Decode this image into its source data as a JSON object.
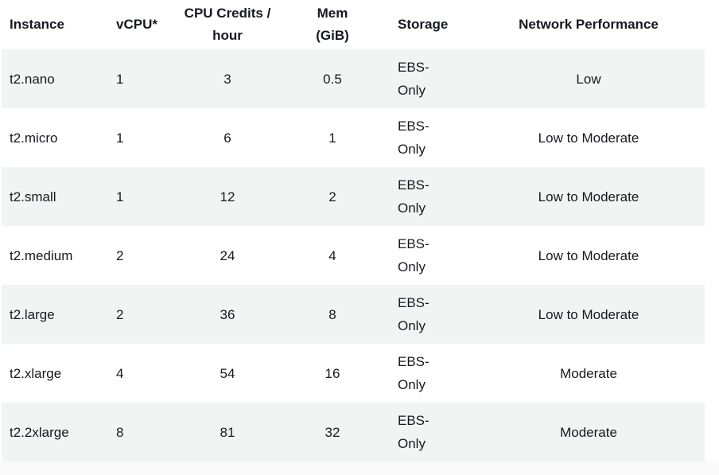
{
  "table": {
    "headers": {
      "instance": "Instance",
      "vcpu": "vCPU*",
      "cpu_credits_line1": "CPU Credits /",
      "cpu_credits_line2": "hour",
      "mem_line1": "Mem",
      "mem_line2": "(GiB)",
      "storage": "Storage",
      "network": "Network Performance"
    },
    "rows": [
      {
        "instance": "t2.nano",
        "vcpu": "1",
        "credits": "3",
        "mem": "0.5",
        "storage_line1": "EBS-",
        "storage_line2": "Only",
        "network": "Low"
      },
      {
        "instance": "t2.micro",
        "vcpu": "1",
        "credits": "6",
        "mem": "1",
        "storage_line1": "EBS-",
        "storage_line2": "Only",
        "network": "Low to Moderate"
      },
      {
        "instance": "t2.small",
        "vcpu": "1",
        "credits": "12",
        "mem": "2",
        "storage_line1": "EBS-",
        "storage_line2": "Only",
        "network": "Low to Moderate"
      },
      {
        "instance": "t2.medium",
        "vcpu": "2",
        "credits": "24",
        "mem": "4",
        "storage_line1": "EBS-",
        "storage_line2": "Only",
        "network": "Low to Moderate"
      },
      {
        "instance": "t2.large",
        "vcpu": "2",
        "credits": "36",
        "mem": "8",
        "storage_line1": "EBS-",
        "storage_line2": "Only",
        "network": "Low to Moderate"
      },
      {
        "instance": "t2.xlarge",
        "vcpu": "4",
        "credits": "54",
        "mem": "16",
        "storage_line1": "EBS-",
        "storage_line2": "Only",
        "network": "Moderate"
      },
      {
        "instance": "t2.2xlarge",
        "vcpu": "8",
        "credits": "81",
        "mem": "32",
        "storage_line1": "EBS-",
        "storage_line2": "Only",
        "network": "Moderate"
      }
    ]
  }
}
